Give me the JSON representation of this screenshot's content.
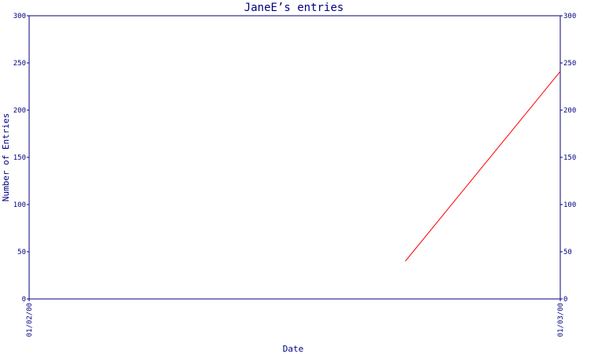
{
  "chart_data": {
    "type": "line",
    "title": "JaneE’s entries",
    "xlabel": "Date",
    "ylabel": "Number of Entries",
    "x_ticks": [
      "01/02/00",
      "01/03/00"
    ],
    "ylim": [
      0,
      300
    ],
    "y_ticks": [
      "0",
      "50",
      "100",
      "150",
      "200",
      "250",
      "300"
    ],
    "x_range": [
      "2000-01-02",
      "2000-01-03"
    ],
    "series": [
      {
        "color": "#ff0000",
        "points": [
          {
            "x": "2000-01-02T17:00",
            "y": 40
          },
          {
            "x": "2000-01-03T00:00",
            "y": 241
          }
        ]
      }
    ],
    "axis_color": "#000080",
    "grid": false
  }
}
